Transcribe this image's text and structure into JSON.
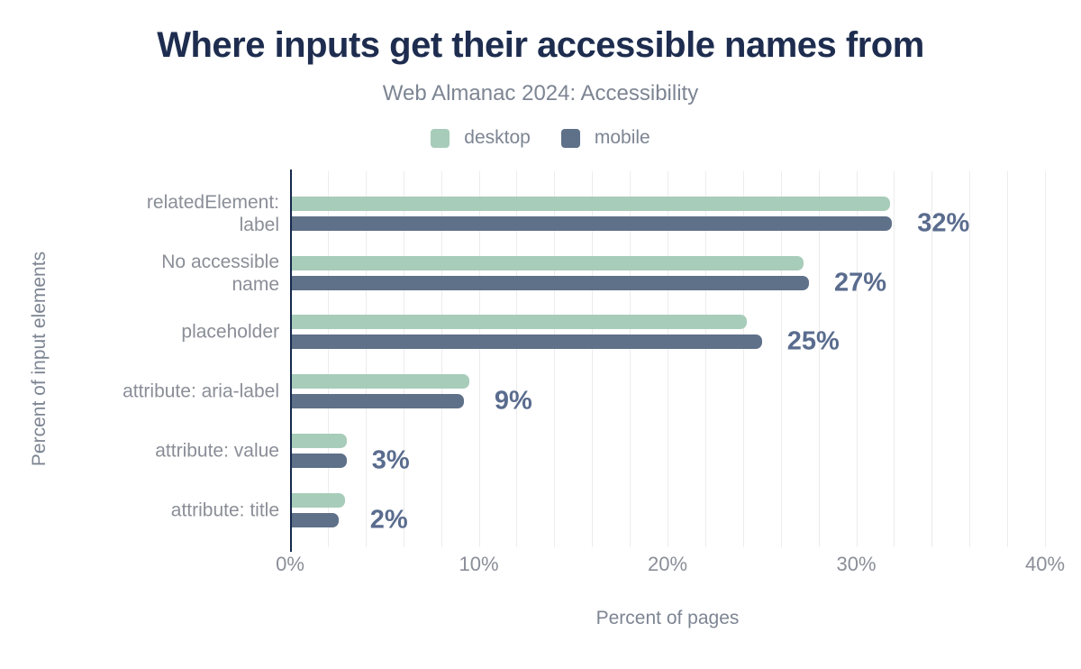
{
  "header": {
    "title": "Where inputs get their accessible names from",
    "subtitle": "Web Almanac 2024: Accessibility"
  },
  "chart_data": {
    "type": "bar",
    "orientation": "horizontal",
    "title": "Where inputs get their accessible names from",
    "subtitle": "Web Almanac 2024: Accessibility",
    "xlabel": "Percent of pages",
    "ylabel": "Percent of input elements",
    "xlim": [
      0,
      40
    ],
    "x_ticks": [
      "0%",
      "10%",
      "20%",
      "30%",
      "40%"
    ],
    "gridline_step_percent": 2,
    "grid": true,
    "legend_position": "top",
    "categories": [
      "relatedElement: label",
      "No accessible name",
      "placeholder",
      "attribute: aria-label",
      "attribute: value",
      "attribute: title"
    ],
    "category_label_lines": [
      [
        "relatedElement:",
        "label"
      ],
      [
        "No accessible",
        "name"
      ],
      [
        "placeholder"
      ],
      [
        "attribute: aria-label"
      ],
      [
        "attribute: value"
      ],
      [
        "attribute: title"
      ]
    ],
    "series": [
      {
        "name": "desktop",
        "color": "#a8ccba",
        "values": [
          31.7,
          27.1,
          24.1,
          9.4,
          2.9,
          2.8
        ]
      },
      {
        "name": "mobile",
        "color": "#5f7089",
        "values": [
          31.8,
          27.4,
          24.9,
          9.1,
          2.9,
          2.5
        ]
      }
    ],
    "value_labels": [
      "32%",
      "27%",
      "25%",
      "9%",
      "3%",
      "2%"
    ],
    "colors": {
      "title_text": "#1e2d4f",
      "subtitle_text": "#7d8593",
      "axis_line": "#16294b",
      "gridline": "#ececec",
      "tick_text": "#8a8e97",
      "category_text": "#8a8e97",
      "legend_text": "#7d8593",
      "value_label_text": "#5a6c8e"
    }
  }
}
